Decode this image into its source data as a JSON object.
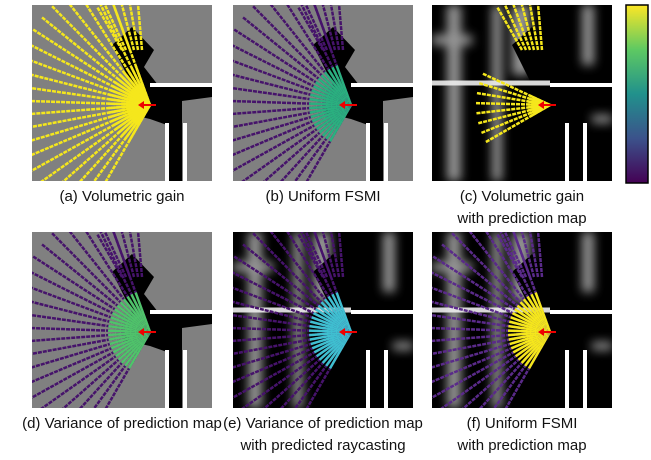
{
  "panels": [
    {
      "caption": [
        "(a) Volumetric gain"
      ]
    },
    {
      "caption": [
        "(b) Uniform FSMI"
      ]
    },
    {
      "caption": [
        "(c) Volumetric gain",
        "with prediction map"
      ]
    },
    {
      "caption": [
        "(d) Variance of prediction map"
      ]
    },
    {
      "caption": [
        "(e) Variance of prediction map",
        "with predicted raycasting"
      ]
    },
    {
      "caption": [
        "(f) Uniform FSMI",
        "with prediction map"
      ]
    }
  ]
}
